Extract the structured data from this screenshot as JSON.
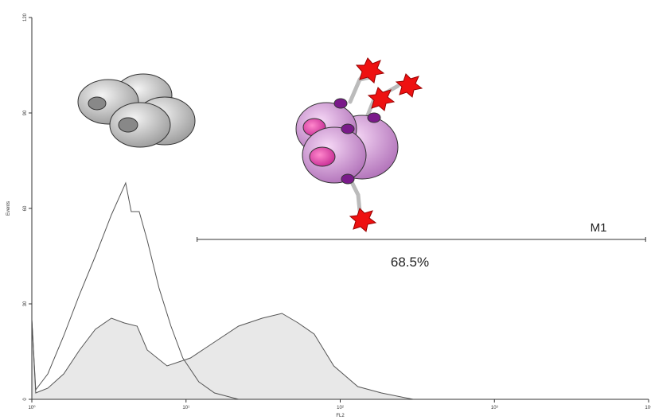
{
  "chart_data": {
    "type": "histogram-overlay",
    "xlabel": "FL2",
    "ylabel": "Events",
    "log_x": true,
    "xlim": [
      1,
      10000
    ],
    "xticks": [
      {
        "value": 1,
        "label": "10⁰"
      },
      {
        "value": 10,
        "label": "10¹"
      },
      {
        "value": 100,
        "label": "10²"
      },
      {
        "value": 1000,
        "label": "10³"
      },
      {
        "value": 10000,
        "label": "10⁴"
      }
    ],
    "ylim": [
      0,
      120
    ],
    "yticks": [
      0,
      30,
      60,
      90,
      120
    ],
    "series": [
      {
        "color": "#555555",
        "fill": "none",
        "x": [
          1,
          1.06,
          1.27,
          1.61,
          2.04,
          2.58,
          3.28,
          4.06,
          4.41,
          4.97,
          5.6,
          6.68,
          7.98,
          9.53,
          12.1,
          15.3,
          21.9
        ],
        "values": [
          25,
          3,
          8,
          20,
          33,
          45,
          58,
          68,
          59,
          59,
          50,
          35,
          23,
          13,
          5.5,
          2,
          0
        ]
      },
      {
        "color": "#555555",
        "fill": "#e8e8e8",
        "x": [
          1,
          1.06,
          1.27,
          1.61,
          2.04,
          2.58,
          3.28,
          3.98,
          4.82,
          5.6,
          7.53,
          10.7,
          15.3,
          21.9,
          31.2,
          41.9,
          53.4,
          67.8,
          90.8,
          130,
          185,
          297
        ],
        "values": [
          25,
          2,
          3.5,
          8,
          15.5,
          22,
          25.5,
          24,
          23,
          15.5,
          10.5,
          13,
          18,
          23,
          25.5,
          27,
          24,
          20.5,
          10.5,
          4,
          2,
          0
        ]
      }
    ],
    "marker": {
      "name": "M1",
      "x": [
        11.8,
        9560
      ],
      "value": 68.5,
      "value_label": "68.5%"
    }
  }
}
